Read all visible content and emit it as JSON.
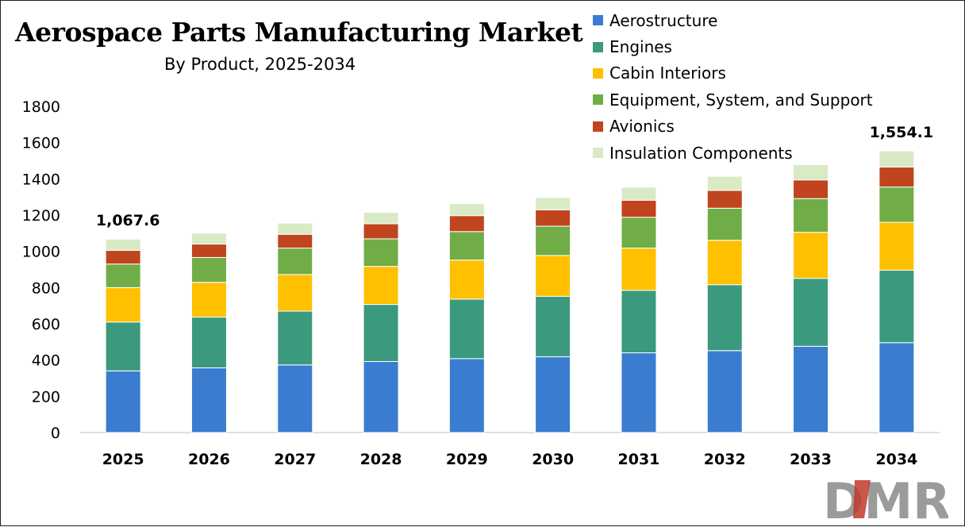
{
  "title": "Aerospace Parts Manufacturing Market",
  "subtitle": "By Product, 2025-2034",
  "logo_text": "DMR",
  "chart_data": {
    "type": "bar",
    "stacked": true,
    "categories": [
      "2025",
      "2026",
      "2027",
      "2028",
      "2029",
      "2030",
      "2031",
      "2032",
      "2033",
      "2034"
    ],
    "ylim": [
      0,
      1800
    ],
    "yticks": [
      0,
      200,
      400,
      600,
      800,
      1000,
      1200,
      1400,
      1600,
      1800
    ],
    "grid": false,
    "legend_position": "top-right",
    "series": [
      {
        "name": "Aerostructure",
        "color": "#3A7DD0",
        "values": [
          340,
          357,
          373,
          392,
          408,
          418,
          440,
          452,
          476,
          496
        ]
      },
      {
        "name": "Engines",
        "color": "#3B9A7E",
        "values": [
          270,
          280,
          297,
          315,
          328,
          334,
          345,
          364,
          375,
          400
        ]
      },
      {
        "name": "Cabin Interiors",
        "color": "#FFC000",
        "values": [
          190,
          192,
          202,
          210,
          216,
          225,
          233,
          245,
          254,
          264
        ]
      },
      {
        "name": "Equipment, System, and Support",
        "color": "#70AD47",
        "values": [
          130,
          137,
          146,
          152,
          157,
          162,
          170,
          177,
          186,
          195
        ]
      },
      {
        "name": "Avionics",
        "color": "#C0451E",
        "values": [
          75,
          74,
          76,
          83,
          88,
          90,
          94,
          98,
          103,
          110
        ]
      },
      {
        "name": "Insulation Components",
        "color": "#D9EAC5",
        "values": [
          62.6,
          61,
          62,
          63,
          66,
          68,
          72,
          78,
          84,
          89.1
        ]
      }
    ],
    "annotations": [
      {
        "category": "2025",
        "label": "1,067.6"
      },
      {
        "category": "2034",
        "label": "1,554.1"
      }
    ]
  }
}
